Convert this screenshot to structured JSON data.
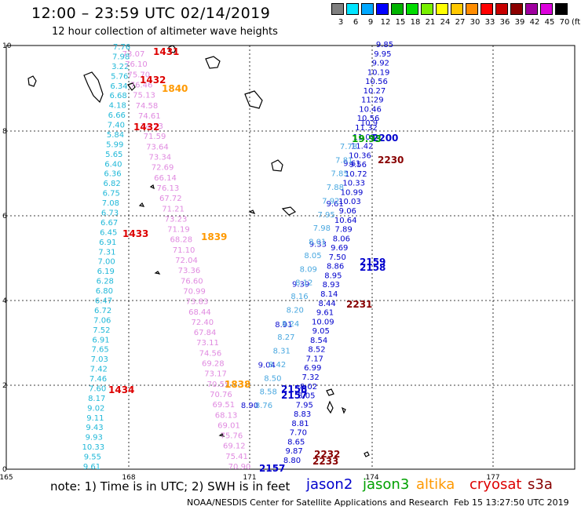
{
  "header": {
    "title": "12:00 – 23:59 UTC 02/14/2019",
    "subtitle": "12 hour collection of altimeter wave heights"
  },
  "colorbar": {
    "colors": [
      "#7f7f7f",
      "#00e5ff",
      "#00a8ff",
      "#0000ff",
      "#00b400",
      "#00dc00",
      "#78f000",
      "#ffff00",
      "#ffc800",
      "#ff8c00",
      "#ff0000",
      "#c80000",
      "#8c0000",
      "#a000a0",
      "#dc00dc",
      "#000000"
    ],
    "labels": [
      "3",
      "6",
      "9",
      "12",
      "15",
      "18",
      "21",
      "24",
      "27",
      "30",
      "33",
      "36",
      "39",
      "42",
      "45",
      "70"
    ],
    "unit": "(ft)"
  },
  "map": {
    "x_ticks": [
      "165",
      "168",
      "171",
      "174",
      "177"
    ],
    "y_ticks": [
      "0",
      "2",
      "4",
      "6",
      "8",
      "10"
    ],
    "colors": {
      "jason2": "#0000cc",
      "jason3": "#00a000",
      "altika": "#ff9900",
      "cryosat": "#dd0000",
      "s3a": "#880000",
      "s3a_pink": "#e08ae0",
      "cyan": "#20b8d8"
    }
  },
  "tracks": [
    {
      "name": "cyan-track",
      "color": "#20b8d8",
      "x0": 155,
      "y0": 63,
      "x1": 117,
      "y1": 598,
      "values": [
        "7.76",
        "7.98",
        "3.22",
        "5.76",
        "6.34",
        "6.68",
        "4.18",
        "6.66",
        "7.40",
        "5.84",
        "5.99",
        "5.65",
        "6.40",
        "6.36",
        "6.82",
        "6.75",
        "7.08",
        "6.73",
        "6.67",
        "6.45",
        "6.91",
        "7.31",
        "7.00",
        "6.19",
        "6.28",
        "6.80",
        "6.47",
        "6.72",
        "7.06",
        "7.52",
        "6.91",
        "7.65",
        "7.03",
        "7.42",
        "7.46",
        "7.60",
        "8.17",
        "9.02",
        "9.11",
        "9.43",
        "9.93",
        "10.33",
        "9.55",
        "9.61"
      ]
    },
    {
      "name": "pink-track",
      "color": "#e08ae0",
      "x0": 170,
      "y0": 72,
      "x1": 305,
      "y1": 598,
      "values": [
        "73.07",
        "76.10",
        "75.70",
        "76.46",
        "75.13",
        "74.58",
        "74.61",
        "74.73",
        "71.59",
        "73.64",
        "73.34",
        "72.69",
        "66.14",
        "76.13",
        "67.72",
        "71.21",
        "73.23",
        "71.19",
        "68.28",
        "71.10",
        "72.04",
        "73.36",
        "76.60",
        "70.99",
        "73.83",
        "68.44",
        "72.40",
        "67.84",
        "73.11",
        "74.56",
        "69.28",
        "73.17",
        "70.55",
        "70.76",
        "69.51",
        "68.13",
        "69.01",
        "75.76",
        "69.12",
        "75.41",
        "70.90"
      ]
    },
    {
      "name": "blue-track-left",
      "color": "#1010d0",
      "x0": 318,
      "y0": 520,
      "x1": 470,
      "y1": 160,
      "values": [
        "8.90",
        "9.04",
        "8.91",
        "9.39",
        "9.33",
        "9.61",
        "9.61",
        "10.9"
      ]
    },
    {
      "name": "blue-track-right",
      "color": "#0000cc",
      "x0": 490,
      "y0": 60,
      "x1": 372,
      "y1": 590,
      "values": [
        "9.85",
        "9.95",
        "9.92",
        "10.19",
        "10.56",
        "10.27",
        "11.29",
        "10.46",
        "10.56",
        "11.32",
        "11.09",
        "11.42",
        "10.36",
        "9.56",
        "10.72",
        "10.33",
        "10.99",
        "10.03",
        "9.06",
        "10.64",
        "7.89",
        "8.06",
        "9.69",
        "7.50",
        "8.86",
        "8.95",
        "8.93",
        "8.14",
        "8.44",
        "9.61",
        "10.09",
        "9.05",
        "8.54",
        "8.52",
        "7.17",
        "6.99",
        "7.32",
        "8.02",
        "8.05",
        "7.95",
        "8.83",
        "8.81",
        "7.70",
        "8.65",
        "9.87",
        "8.80"
      ]
    },
    {
      "name": "cyan-diagonal-track",
      "color": "#4aa8e0",
      "x0": 336,
      "y0": 520,
      "x1": 444,
      "y1": 190,
      "values": [
        "8.76",
        "8.58",
        "8.50",
        "8.42",
        "8.31",
        "8.27",
        "8.24",
        "8.20",
        "8.16",
        "8.12",
        "8.09",
        "8.05",
        "8.01",
        "7.98",
        "7.95",
        "7.92",
        "7.88",
        "7.85",
        "7.81",
        "7.78"
      ]
    }
  ],
  "time_labels": [
    {
      "text": "1431",
      "color": "#dd0000"
    },
    {
      "text": "1432",
      "color": "#dd0000"
    },
    {
      "text": "1840",
      "color": "#ff9900"
    },
    {
      "text": "1432",
      "color": "#dd0000"
    },
    {
      "text": "1433",
      "color": "#dd0000"
    },
    {
      "text": "1839",
      "color": "#ff9900"
    },
    {
      "text": "1838",
      "color": "#ff9900"
    },
    {
      "text": "1434",
      "color": "#dd0000"
    },
    {
      "text": "2200",
      "color": "#0000cc"
    },
    {
      "text": "2230",
      "color": "#880000"
    },
    {
      "text": "2159",
      "color": "#0000cc"
    },
    {
      "text": "2158",
      "color": "#0000cc"
    },
    {
      "text": "2231",
      "color": "#880000"
    },
    {
      "text": "2158",
      "color": "#0000cc"
    },
    {
      "text": "2157",
      "color": "#0000cc"
    },
    {
      "text": "2232",
      "color": "#880000"
    },
    {
      "text": "2233",
      "color": "#880000"
    },
    {
      "text": "2157",
      "color": "#0000cc"
    },
    {
      "text": "19.93",
      "color": "#00a000"
    }
  ],
  "footer": {
    "note": "note: 1) Time is in UTC; 2) SWH is in feet",
    "legend": [
      {
        "label": "jason2",
        "color": "#0000cc"
      },
      {
        "label": "jason3",
        "color": "#00a000"
      },
      {
        "label": "altika",
        "color": "#ff9900"
      },
      {
        "label": "cryosat",
        "color": "#dd0000"
      },
      {
        "label": "s3a",
        "color": "#880000"
      }
    ],
    "credit": "NOAA/NESDIS Center for Satellite Applications and Research",
    "timestamp": "Feb 15 13:27:50 UTC 2019"
  }
}
